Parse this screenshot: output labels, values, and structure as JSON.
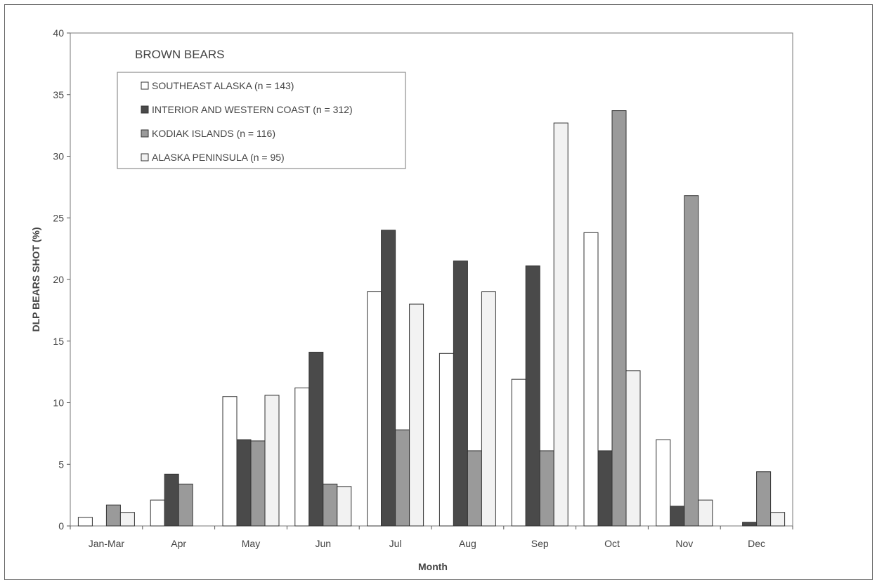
{
  "chart_data": {
    "type": "bar",
    "title": "BROWN BEARS",
    "xlabel": "Month",
    "ylabel": "DLP BEARS SHOT (%)",
    "ylim": [
      0,
      40
    ],
    "yticks": [
      0,
      5,
      10,
      15,
      20,
      25,
      30,
      35,
      40
    ],
    "grid": false,
    "legend_position": "top-left",
    "categories": [
      "Jan-Mar",
      "Apr",
      "May",
      "Jun",
      "Jul",
      "Aug",
      "Sep",
      "Oct",
      "Nov",
      "Dec"
    ],
    "series": [
      {
        "name": "SOUTHEAST ALASKA (n = 143)",
        "color": "#ffffff",
        "values": [
          0.7,
          2.1,
          10.5,
          11.2,
          19.0,
          14.0,
          11.9,
          23.8,
          7.0,
          0
        ]
      },
      {
        "name": "INTERIOR AND WESTERN COAST (n = 312)",
        "color": "#4a4a4a",
        "values": [
          0,
          4.2,
          7.0,
          14.1,
          24.0,
          21.5,
          21.1,
          6.1,
          1.6,
          0.3
        ]
      },
      {
        "name": "KODIAK ISLANDS (n = 116)",
        "color": "#9a9a9a",
        "values": [
          1.7,
          3.4,
          6.9,
          3.4,
          7.8,
          6.1,
          6.1,
          33.7,
          26.8,
          4.4
        ]
      },
      {
        "name": "ALASKA PENINSULA (n = 95)",
        "color": "#f2f2f2",
        "values": [
          1.1,
          0,
          10.6,
          3.2,
          18.0,
          19.0,
          32.7,
          12.6,
          2.1,
          1.1
        ]
      }
    ]
  }
}
